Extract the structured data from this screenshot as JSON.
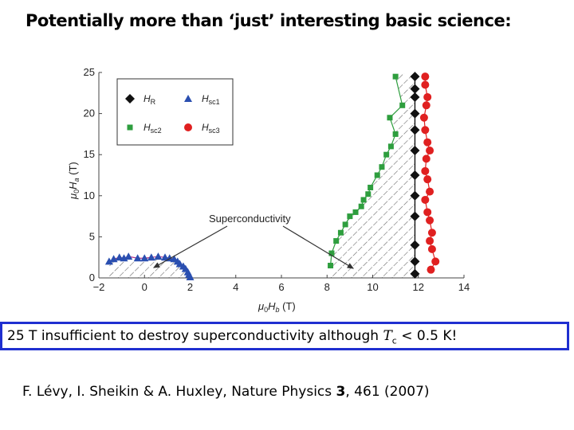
{
  "slide": {
    "title": "Potentially more than ‘just’ interesting basic science:",
    "callout_prefix": "25 T insufficient to destroy superconductivity although ",
    "callout_symbol": "T",
    "callout_sub": "c",
    "callout_suffix": " < 0.5 K!",
    "citation_prefix": "F. Lévy, I. Sheikin & A. Huxley, Nature Physics ",
    "citation_volume": "3",
    "citation_suffix": ", 461 (2007)"
  },
  "chart_data": {
    "type": "scatter",
    "xlabel": "μ0Hb (T)",
    "ylabel": "μ0Ha (T)",
    "xlim": [
      -2,
      14
    ],
    "ylim": [
      0,
      25
    ],
    "x_ticks": [
      -2,
      0,
      2,
      4,
      6,
      8,
      10,
      12,
      14
    ],
    "y_ticks": [
      0,
      5,
      10,
      15,
      20,
      25
    ],
    "annotation": "Superconductivity",
    "legend_position": "top-left",
    "series": [
      {
        "name": "HR",
        "marker": "diamond",
        "color": "#111111",
        "x": [
          11.85,
          11.85,
          11.85,
          11.85,
          11.85,
          11.85,
          11.85,
          11.85,
          11.85,
          11.85,
          11.85,
          11.85
        ],
        "y": [
          0.5,
          2.0,
          4.0,
          7.5,
          10.0,
          12.5,
          15.5,
          18.0,
          20.0,
          22.0,
          23.0,
          24.5
        ]
      },
      {
        "name": "Hsc1",
        "marker": "triangle",
        "color": "#2a4fb0",
        "x": [
          -1.55,
          -1.35,
          -1.1,
          -0.9,
          -0.7,
          -0.3,
          0.0,
          0.3,
          0.6,
          0.9,
          1.1,
          1.3,
          1.45,
          1.55,
          1.7,
          1.8,
          1.9,
          1.95,
          2.0
        ],
        "y": [
          2.0,
          2.3,
          2.5,
          2.4,
          2.6,
          2.4,
          2.4,
          2.5,
          2.6,
          2.5,
          2.4,
          2.3,
          2.0,
          1.7,
          1.4,
          1.1,
          0.7,
          0.4,
          0.1
        ]
      },
      {
        "name": "Hsc2",
        "marker": "square",
        "color": "#2e9e3e",
        "x": [
          8.15,
          8.2,
          8.4,
          8.6,
          8.8,
          9.0,
          9.25,
          9.5,
          9.6,
          9.8,
          9.9,
          10.2,
          10.4,
          10.6,
          10.8,
          11.0,
          10.75,
          11.3,
          11.0
        ],
        "y": [
          1.5,
          3.0,
          4.5,
          5.5,
          6.5,
          7.5,
          8.0,
          8.7,
          9.5,
          10.2,
          11.0,
          12.5,
          13.5,
          15.0,
          16.0,
          17.5,
          19.5,
          21.0,
          24.5
        ]
      },
      {
        "name": "Hsc3",
        "marker": "circle",
        "color": "#e02020",
        "x": [
          12.55,
          12.75,
          12.6,
          12.5,
          12.6,
          12.5,
          12.4,
          12.3,
          12.5,
          12.4,
          12.3,
          12.35,
          12.5,
          12.4,
          12.3,
          12.25,
          12.35,
          12.4,
          12.3,
          12.3
        ],
        "y": [
          1.0,
          2.0,
          3.5,
          4.5,
          5.5,
          7.0,
          8.0,
          9.5,
          10.5,
          12.0,
          13.0,
          14.5,
          15.5,
          16.5,
          18.0,
          19.5,
          21.0,
          22.0,
          23.5,
          24.5
        ]
      }
    ]
  }
}
